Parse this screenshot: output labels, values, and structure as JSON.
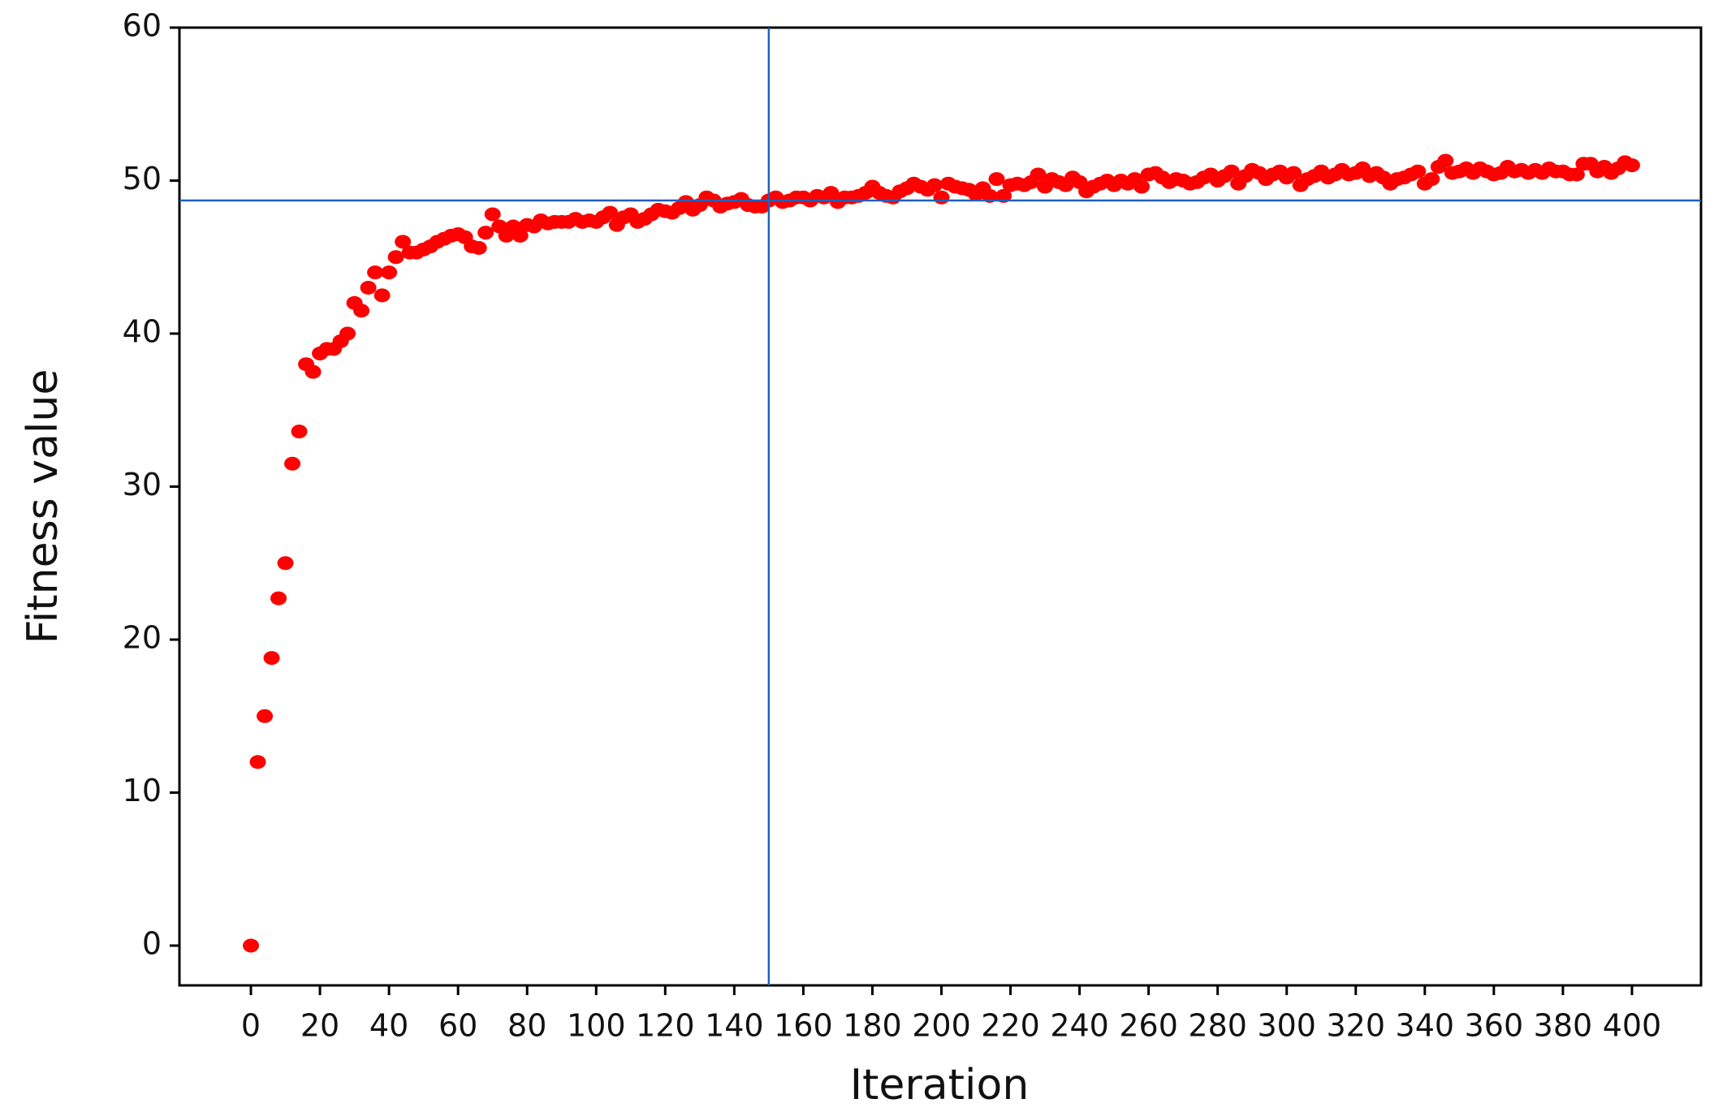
{
  "chart_data": {
    "type": "scatter",
    "xlabel": "Iteration",
    "ylabel": "Fitness value",
    "color": "#ff0000",
    "line_color": "#1f5fbf",
    "xlim": [
      -20.7,
      420
    ],
    "ylim": [
      -2.6,
      60
    ],
    "xticks": [
      0,
      20,
      40,
      60,
      80,
      100,
      120,
      140,
      160,
      180,
      200,
      220,
      240,
      260,
      280,
      300,
      320,
      340,
      360,
      380,
      400
    ],
    "yticks": [
      0,
      10,
      20,
      30,
      40,
      50,
      60
    ],
    "vline": 150,
    "hline": 48.7,
    "x": [
      0,
      2,
      4,
      6,
      8,
      10,
      12,
      14,
      16,
      18,
      20,
      22,
      24,
      26,
      28,
      30,
      32,
      34,
      36,
      38,
      40,
      42,
      44,
      46,
      48,
      50,
      52,
      54,
      56,
      58,
      60,
      62,
      64,
      66,
      68,
      70,
      72,
      74,
      76,
      78,
      80,
      82,
      84,
      86,
      88,
      90,
      92,
      94,
      96,
      98,
      100,
      102,
      104,
      106,
      108,
      110,
      112,
      114,
      116,
      118,
      120,
      122,
      124,
      126,
      128,
      130,
      132,
      134,
      136,
      138,
      140,
      142,
      144,
      146,
      148,
      150,
      152,
      154,
      156,
      158,
      160,
      162,
      164,
      166,
      168,
      170,
      172,
      174,
      176,
      178,
      180,
      182,
      184,
      186,
      188,
      190,
      192,
      194,
      196,
      198,
      200,
      202,
      204,
      206,
      208,
      210,
      212,
      214,
      216,
      218,
      220,
      222,
      224,
      226,
      228,
      230,
      232,
      234,
      236,
      238,
      240,
      242,
      244,
      246,
      248,
      250,
      252,
      254,
      256,
      258,
      260,
      262,
      264,
      266,
      268,
      270,
      272,
      274,
      276,
      278,
      280,
      282,
      284,
      286,
      288,
      290,
      292,
      294,
      296,
      298,
      300,
      302,
      304,
      306,
      308,
      310,
      312,
      314,
      316,
      318,
      320,
      322,
      324,
      326,
      328,
      330,
      332,
      334,
      336,
      338,
      340,
      342,
      344,
      346,
      348,
      350,
      352,
      354,
      356,
      358,
      360,
      362,
      364,
      366,
      368,
      370,
      372,
      374,
      376,
      378,
      380,
      382,
      384,
      386,
      388,
      390,
      392,
      394,
      396,
      398,
      400
    ],
    "values": [
      0,
      12,
      15,
      18.8,
      22.7,
      25,
      31.5,
      33.6,
      38,
      37.5,
      38.7,
      39,
      39,
      39.5,
      40,
      42,
      41.5,
      43,
      44,
      42.5,
      44,
      45,
      46,
      45.3,
      45.3,
      45.5,
      45.7,
      46,
      46.2,
      46.4,
      46.5,
      46.3,
      45.7,
      45.6,
      46.6,
      47.8,
      47,
      46.4,
      47,
      46.4,
      47.1,
      47.0,
      47.4,
      47.2,
      47.3,
      47.3,
      47.3,
      47.5,
      47.3,
      47.4,
      47.3,
      47.6,
      47.9,
      47.1,
      47.6,
      47.8,
      47.3,
      47.5,
      47.8,
      48.1,
      48.0,
      47.9,
      48.2,
      48.6,
      48.1,
      48.4,
      48.9,
      48.7,
      48.3,
      48.5,
      48.6,
      48.8,
      48.4,
      48.3,
      48.3,
      48.7,
      48.9,
      48.6,
      48.7,
      48.9,
      48.9,
      48.7,
      49.0,
      48.9,
      49.2,
      48.6,
      48.9,
      48.9,
      49.0,
      49.2,
      49.6,
      49.2,
      49.0,
      48.9,
      49.3,
      49.5,
      49.8,
      49.6,
      49.4,
      49.7,
      48.9,
      49.8,
      49.6,
      49.5,
      49.4,
      49.1,
      49.5,
      49.0,
      50.1,
      49.0,
      49.7,
      49.8,
      49.7,
      49.9,
      50.4,
      49.6,
      50.1,
      49.9,
      49.7,
      50.2,
      49.9,
      49.3,
      49.6,
      49.8,
      50.0,
      49.7,
      50.0,
      49.8,
      50.1,
      49.6,
      50.4,
      50.5,
      50.2,
      49.9,
      50.1,
      50.0,
      49.8,
      49.9,
      50.2,
      50.4,
      50.0,
      50.3,
      50.6,
      49.8,
      50.3,
      50.7,
      50.5,
      50.1,
      50.4,
      50.6,
      50.2,
      50.5,
      49.7,
      50.1,
      50.3,
      50.6,
      50.2,
      50.4,
      50.7,
      50.4,
      50.5,
      50.8,
      50.3,
      50.5,
      50.2,
      49.8,
      50.1,
      50.2,
      50.4,
      50.6,
      49.8,
      50.1,
      50.9,
      51.3,
      50.5,
      50.6,
      50.8,
      50.5,
      50.8,
      50.6,
      50.4,
      50.5,
      50.9,
      50.6,
      50.7,
      50.5,
      50.7,
      50.5,
      50.8,
      50.6,
      50.6,
      50.4,
      50.4,
      51.1,
      51.1,
      50.6,
      50.9,
      50.5,
      50.8,
      51.2,
      51.0
    ]
  }
}
